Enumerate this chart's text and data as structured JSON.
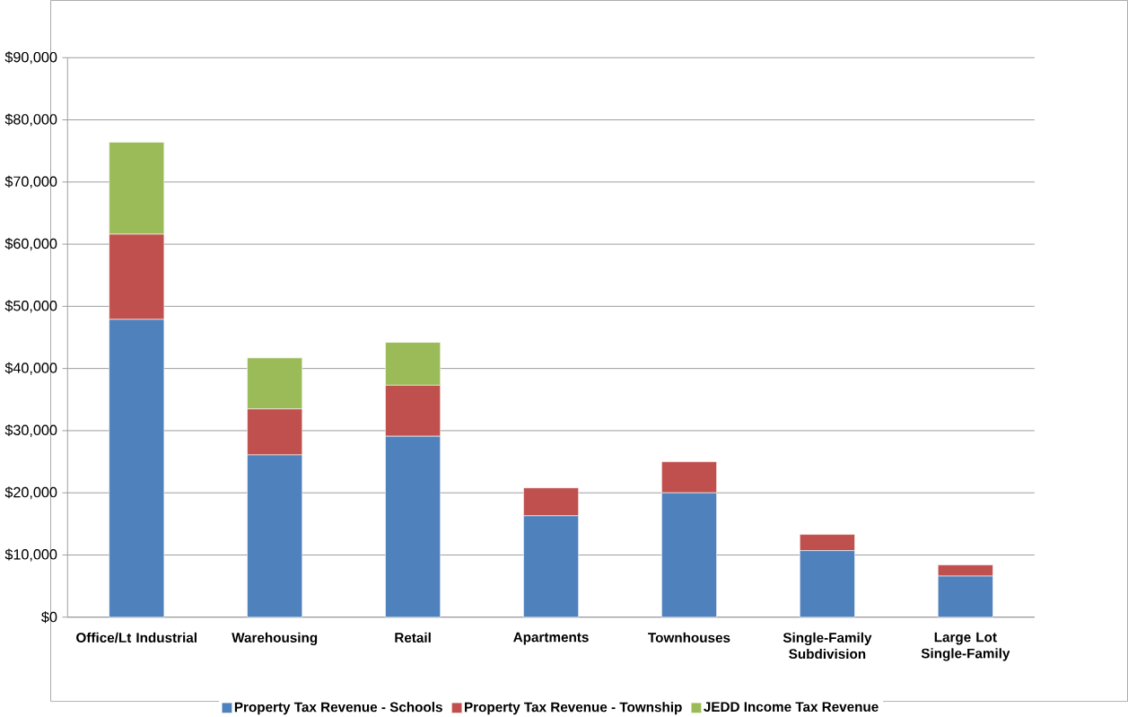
{
  "chart_data": {
    "type": "bar",
    "stacked": true,
    "categories": [
      "Office/Lt Industrial",
      "Warehousing",
      "Retail",
      "Apartments",
      "Townhouses",
      "Single-Family Subdivision",
      "Large Lot Single-Family"
    ],
    "series": [
      {
        "name": "Property Tax Revenue - Schools",
        "color": "#4f81bd",
        "values": [
          47900,
          26100,
          29100,
          16300,
          20000,
          10700,
          6600
        ]
      },
      {
        "name": "Property Tax Revenue - Township",
        "color": "#c0504d",
        "values": [
          13700,
          7400,
          8200,
          4500,
          5000,
          2600,
          1800
        ]
      },
      {
        "name": "JEDD Income Tax Revenue",
        "color": "#9bbb59",
        "values": [
          14800,
          8200,
          6900,
          null,
          null,
          null,
          null
        ]
      }
    ],
    "ylim": [
      0,
      90000
    ],
    "yticks": [
      {
        "value": 0,
        "label": "$0"
      },
      {
        "value": 10000,
        "label": "$10,000"
      },
      {
        "value": 20000,
        "label": "$20,000"
      },
      {
        "value": 30000,
        "label": "$30,000"
      },
      {
        "value": 40000,
        "label": "$40,000"
      },
      {
        "value": 50000,
        "label": "$50,000"
      },
      {
        "value": 60000,
        "label": "$60,000"
      },
      {
        "value": 70000,
        "label": "$70,000"
      },
      {
        "value": 80000,
        "label": "$80,000"
      },
      {
        "value": 90000,
        "label": "$90,000"
      }
    ],
    "grid": "y",
    "legend": "bottom"
  }
}
